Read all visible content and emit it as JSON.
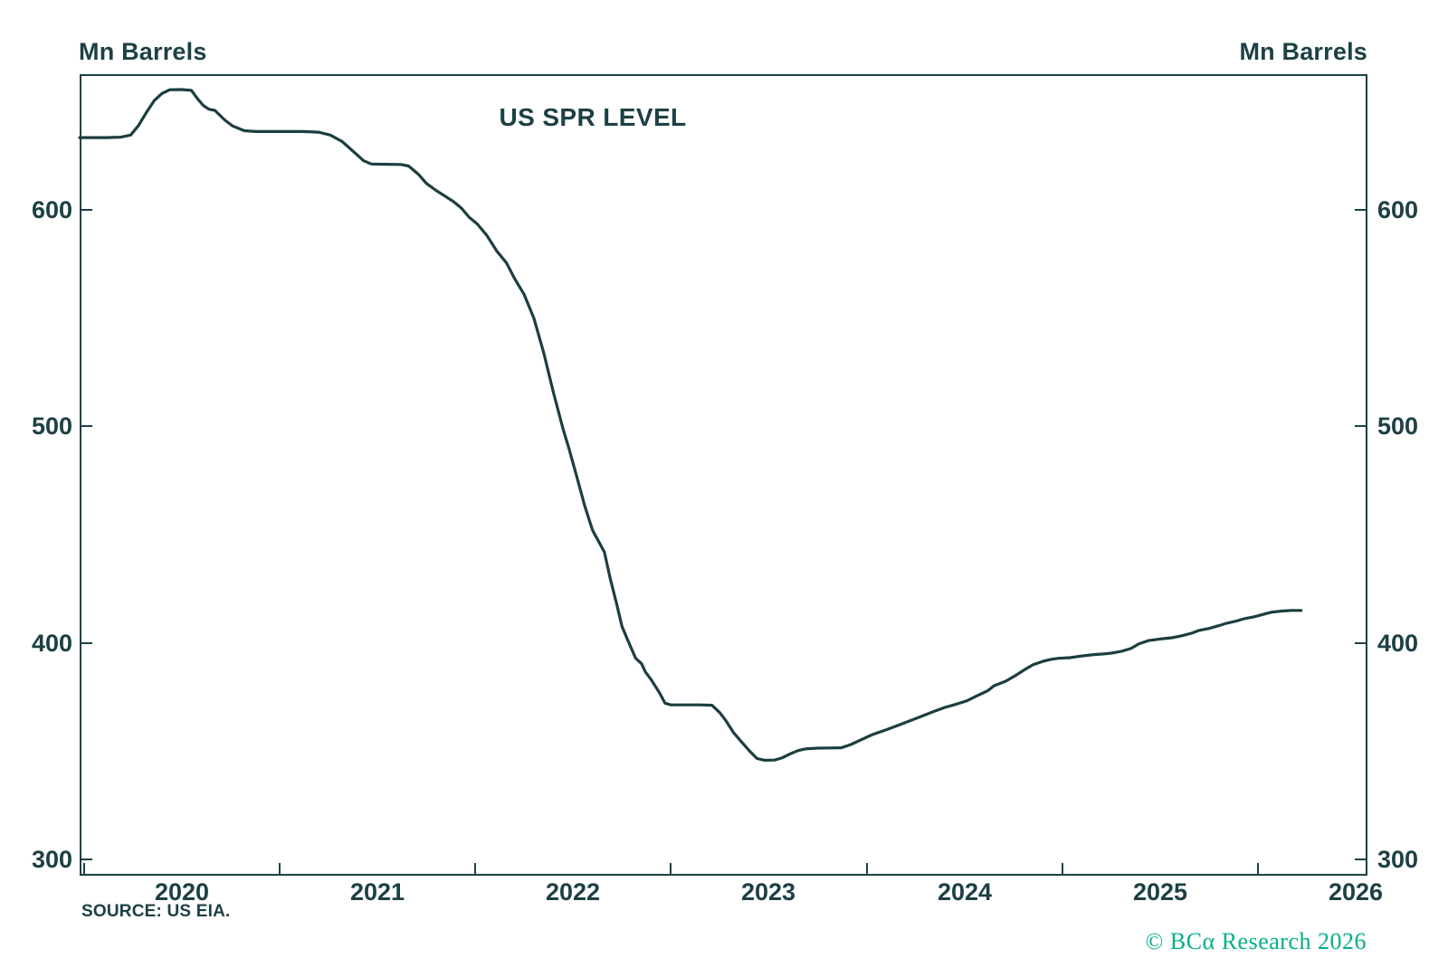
{
  "header": {
    "unit_label_left": "Mn Barrels",
    "unit_label_right": "Mn Barrels"
  },
  "footer": {
    "source": "SOURCE: US EIA.",
    "copyright": "© BCα Research 2026"
  },
  "colors": {
    "text": "#1d4045",
    "line": "#1c3e40",
    "frame": "#1d4045",
    "copyright_green": "#00b08c",
    "background": "#ffffff"
  },
  "chart_data": {
    "type": "line",
    "title": "US SPR LEVEL",
    "ylabel": "Mn Barrels",
    "grid": false,
    "legend": "none",
    "xlim": [
      2019.979,
      2026.559
    ],
    "ylim": [
      292.5,
      662.7
    ],
    "x_ticks": [
      2020,
      2021,
      2022,
      2023,
      2024,
      2025,
      2026
    ],
    "x_tick_labels": [
      "2020",
      "2021",
      "2022",
      "2023",
      "2024",
      "2025",
      "2026"
    ],
    "y_ticks": [
      300,
      400,
      500,
      600
    ],
    "series": [
      {
        "name": "US SPR Level (Mn Barrels)",
        "points": [
          [
            2019.979,
            633.4
          ],
          [
            2020.05,
            633.4
          ],
          [
            2020.12,
            633.4
          ],
          [
            2020.19,
            633.6
          ],
          [
            2020.24,
            634.6
          ],
          [
            2020.28,
            639.0
          ],
          [
            2020.32,
            645.0
          ],
          [
            2020.36,
            650.5
          ],
          [
            2020.4,
            653.8
          ],
          [
            2020.44,
            655.5
          ],
          [
            2020.5,
            655.6
          ],
          [
            2020.55,
            655.2
          ],
          [
            2020.58,
            651.5
          ],
          [
            2020.61,
            648.3
          ],
          [
            2020.64,
            646.5
          ],
          [
            2020.67,
            646.0
          ],
          [
            2020.72,
            641.6
          ],
          [
            2020.76,
            638.8
          ],
          [
            2020.82,
            636.6
          ],
          [
            2020.88,
            636.2
          ],
          [
            2021.0,
            636.2
          ],
          [
            2021.12,
            636.2
          ],
          [
            2021.2,
            635.9
          ],
          [
            2021.26,
            634.6
          ],
          [
            2021.32,
            631.6
          ],
          [
            2021.38,
            626.8
          ],
          [
            2021.43,
            622.7
          ],
          [
            2021.47,
            621.2
          ],
          [
            2021.55,
            621.1
          ],
          [
            2021.62,
            621.0
          ],
          [
            2021.66,
            620.3
          ],
          [
            2021.71,
            616.5
          ],
          [
            2021.75,
            612.3
          ],
          [
            2021.8,
            609.0
          ],
          [
            2021.84,
            606.7
          ],
          [
            2021.89,
            603.8
          ],
          [
            2021.93,
            600.8
          ],
          [
            2021.97,
            596.5
          ],
          [
            2022.01,
            593.6
          ],
          [
            2022.06,
            588.2
          ],
          [
            2022.11,
            581.0
          ],
          [
            2022.16,
            575.5
          ],
          [
            2022.2,
            568.5
          ],
          [
            2022.25,
            561.0
          ],
          [
            2022.3,
            550.0
          ],
          [
            2022.35,
            534.0
          ],
          [
            2022.4,
            515.5
          ],
          [
            2022.45,
            498.5
          ],
          [
            2022.48,
            489.5
          ],
          [
            2022.52,
            476.5
          ],
          [
            2022.56,
            463.2
          ],
          [
            2022.6,
            452.0
          ],
          [
            2022.63,
            447.0
          ],
          [
            2022.66,
            442.0
          ],
          [
            2022.69,
            429.7
          ],
          [
            2022.72,
            419.0
          ],
          [
            2022.75,
            407.6
          ],
          [
            2022.78,
            401.2
          ],
          [
            2022.8,
            397.0
          ],
          [
            2022.82,
            392.9
          ],
          [
            2022.85,
            390.4
          ],
          [
            2022.87,
            386.6
          ],
          [
            2022.9,
            382.9
          ],
          [
            2022.94,
            377.2
          ],
          [
            2022.97,
            372.2
          ],
          [
            2023.0,
            371.4
          ],
          [
            2023.08,
            371.4
          ],
          [
            2023.15,
            371.4
          ],
          [
            2023.21,
            371.2
          ],
          [
            2023.25,
            367.8
          ],
          [
            2023.28,
            364.2
          ],
          [
            2023.32,
            358.6
          ],
          [
            2023.36,
            354.4
          ],
          [
            2023.4,
            350.3
          ],
          [
            2023.44,
            346.6
          ],
          [
            2023.48,
            345.8
          ],
          [
            2023.53,
            345.9
          ],
          [
            2023.57,
            347.0
          ],
          [
            2023.61,
            348.8
          ],
          [
            2023.65,
            350.3
          ],
          [
            2023.69,
            351.1
          ],
          [
            2023.75,
            351.4
          ],
          [
            2023.81,
            351.5
          ],
          [
            2023.87,
            351.6
          ],
          [
            2023.92,
            353.1
          ],
          [
            2023.97,
            355.2
          ],
          [
            2024.03,
            357.7
          ],
          [
            2024.1,
            359.9
          ],
          [
            2024.16,
            361.9
          ],
          [
            2024.22,
            364.0
          ],
          [
            2024.28,
            366.1
          ],
          [
            2024.34,
            368.2
          ],
          [
            2024.4,
            370.2
          ],
          [
            2024.45,
            371.5
          ],
          [
            2024.51,
            373.2
          ],
          [
            2024.56,
            375.4
          ],
          [
            2024.62,
            378.0
          ],
          [
            2024.65,
            380.2
          ],
          [
            2024.71,
            382.3
          ],
          [
            2024.76,
            384.9
          ],
          [
            2024.81,
            387.8
          ],
          [
            2024.85,
            389.9
          ],
          [
            2024.9,
            391.5
          ],
          [
            2024.94,
            392.4
          ],
          [
            2024.98,
            392.9
          ],
          [
            2025.04,
            393.2
          ],
          [
            2025.1,
            394.0
          ],
          [
            2025.16,
            394.6
          ],
          [
            2025.21,
            394.9
          ],
          [
            2025.25,
            395.3
          ],
          [
            2025.3,
            396.1
          ],
          [
            2025.35,
            397.4
          ],
          [
            2025.39,
            399.5
          ],
          [
            2025.44,
            401.1
          ],
          [
            2025.49,
            401.7
          ],
          [
            2025.52,
            402.0
          ],
          [
            2025.56,
            402.4
          ],
          [
            2025.61,
            403.3
          ],
          [
            2025.66,
            404.5
          ],
          [
            2025.7,
            405.8
          ],
          [
            2025.75,
            406.7
          ],
          [
            2025.8,
            408.0
          ],
          [
            2025.84,
            409.1
          ],
          [
            2025.89,
            410.1
          ],
          [
            2025.93,
            411.2
          ],
          [
            2025.98,
            412.1
          ],
          [
            2026.03,
            413.3
          ],
          [
            2026.07,
            414.2
          ],
          [
            2026.12,
            414.7
          ],
          [
            2026.17,
            415.0
          ],
          [
            2026.22,
            415.0
          ]
        ]
      }
    ]
  }
}
